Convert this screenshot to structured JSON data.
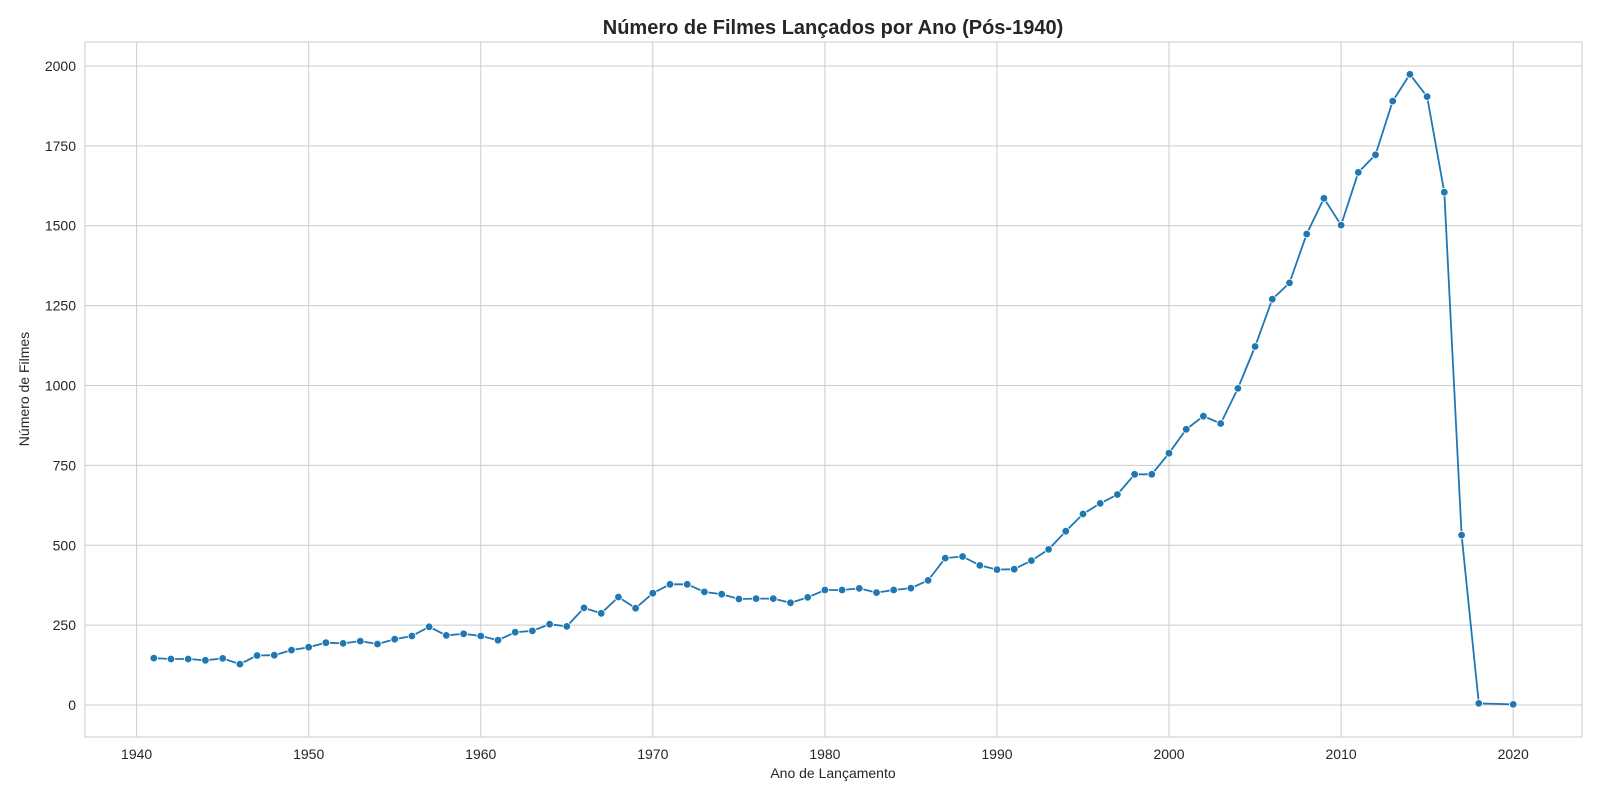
{
  "chart_data": {
    "type": "line",
    "title": "Número de Filmes Lançados por Ano (Pós-1940)",
    "xlabel": "Ano de Lançamento",
    "ylabel": "Número de Filmes",
    "xlim": [
      1937,
      2024
    ],
    "ylim": [
      -100,
      2075
    ],
    "xticks": [
      1940,
      1950,
      1960,
      1970,
      1980,
      1990,
      2000,
      2010,
      2020
    ],
    "yticks": [
      0,
      250,
      500,
      750,
      1000,
      1250,
      1500,
      1750,
      2000
    ],
    "grid": true,
    "color": "#1f77b4",
    "series": [
      {
        "x": [
          1941,
          1942,
          1943,
          1944,
          1945,
          1946,
          1947,
          1948,
          1949,
          1950,
          1951,
          1952,
          1953,
          1954,
          1955,
          1956,
          1957,
          1958,
          1959,
          1960,
          1961,
          1962,
          1963,
          1964,
          1965,
          1966,
          1967,
          1968,
          1969,
          1970,
          1971,
          1972,
          1973,
          1974,
          1975,
          1976,
          1977,
          1978,
          1979,
          1980,
          1981,
          1982,
          1983,
          1984,
          1985,
          1986,
          1987,
          1988,
          1989,
          1990,
          1991,
          1992,
          1993,
          1994,
          1995,
          1996,
          1997,
          1998,
          1999,
          2000,
          2001,
          2002,
          2003,
          2004,
          2005,
          2006,
          2007,
          2008,
          2009,
          2010,
          2011,
          2012,
          2013,
          2014,
          2015,
          2016,
          2017,
          2018,
          2020
        ],
        "y": [
          147,
          144,
          144,
          140,
          146,
          128,
          155,
          156,
          172,
          181,
          195,
          193,
          200,
          191,
          206,
          216,
          245,
          218,
          223,
          216,
          203,
          228,
          232,
          253,
          246,
          304,
          287,
          338,
          303,
          350,
          378,
          378,
          354,
          347,
          332,
          333,
          333,
          320,
          337,
          360,
          360,
          365,
          352,
          360,
          366,
          390,
          460,
          465,
          437,
          424,
          425,
          452,
          487,
          544,
          598,
          631,
          659,
          722,
          722,
          788,
          863,
          904,
          881,
          991,
          1122,
          1270,
          1321,
          1474,
          1586,
          1502,
          1667,
          1722,
          1890,
          1974,
          1904,
          1605,
          532,
          5,
          2
        ]
      }
    ]
  }
}
